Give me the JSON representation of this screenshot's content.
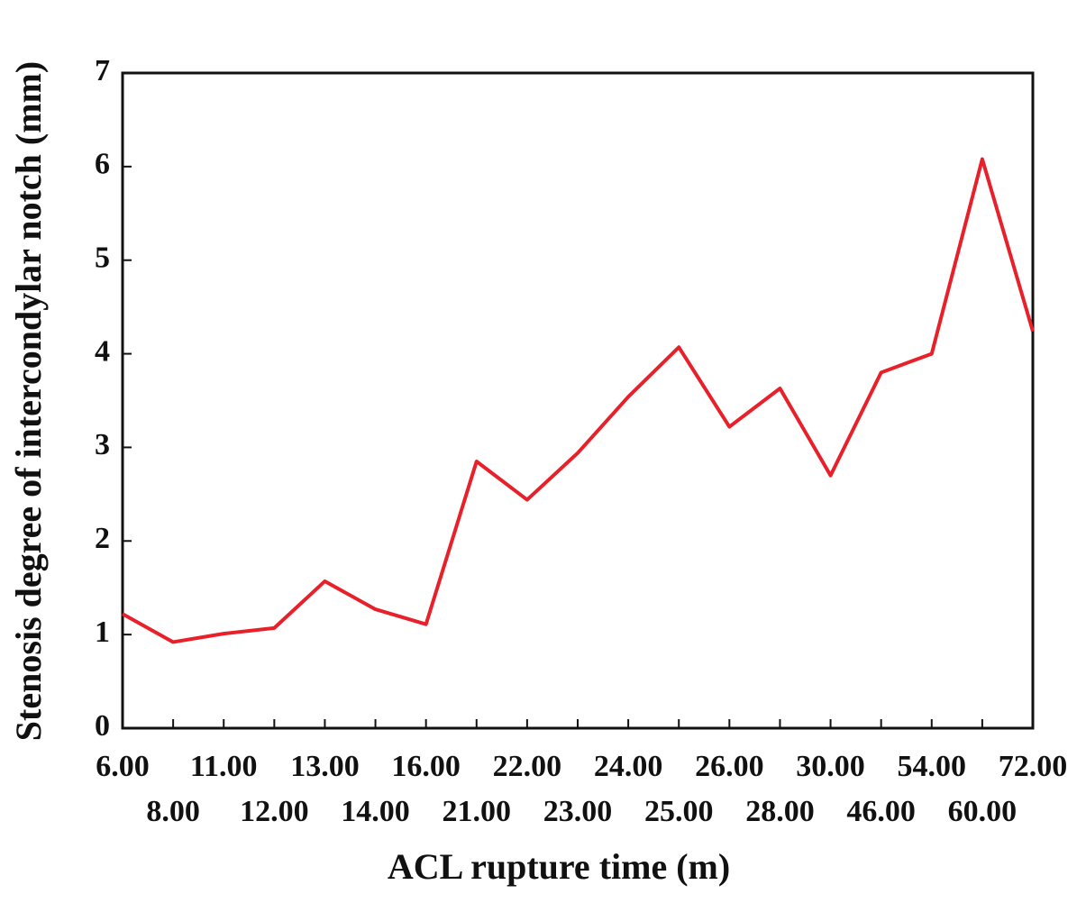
{
  "chart_data": {
    "type": "line",
    "x_label": "ACL rupture time (m)",
    "y_label": "Stenosis degree of intercondylar notch (mm)",
    "categories": [
      "6.00",
      "8.00",
      "11.00",
      "12.00",
      "13.00",
      "14.00",
      "16.00",
      "21.00",
      "22.00",
      "23.00",
      "24.00",
      "25.00",
      "26.00",
      "28.00",
      "30.00",
      "46.00",
      "54.00",
      "60.00",
      "72.00"
    ],
    "series": [
      {
        "name": "Stenosis degree",
        "color": "#e8202a",
        "values": [
          1.22,
          0.92,
          1.01,
          1.07,
          1.57,
          1.27,
          1.11,
          2.85,
          2.44,
          2.94,
          3.54,
          4.07,
          3.22,
          3.63,
          2.7,
          3.8,
          4.0,
          6.08,
          4.24
        ]
      }
    ],
    "ylim": [
      0,
      7
    ],
    "yticks": [
      0,
      1,
      2,
      3,
      4,
      5,
      6,
      7
    ],
    "grid": false
  }
}
